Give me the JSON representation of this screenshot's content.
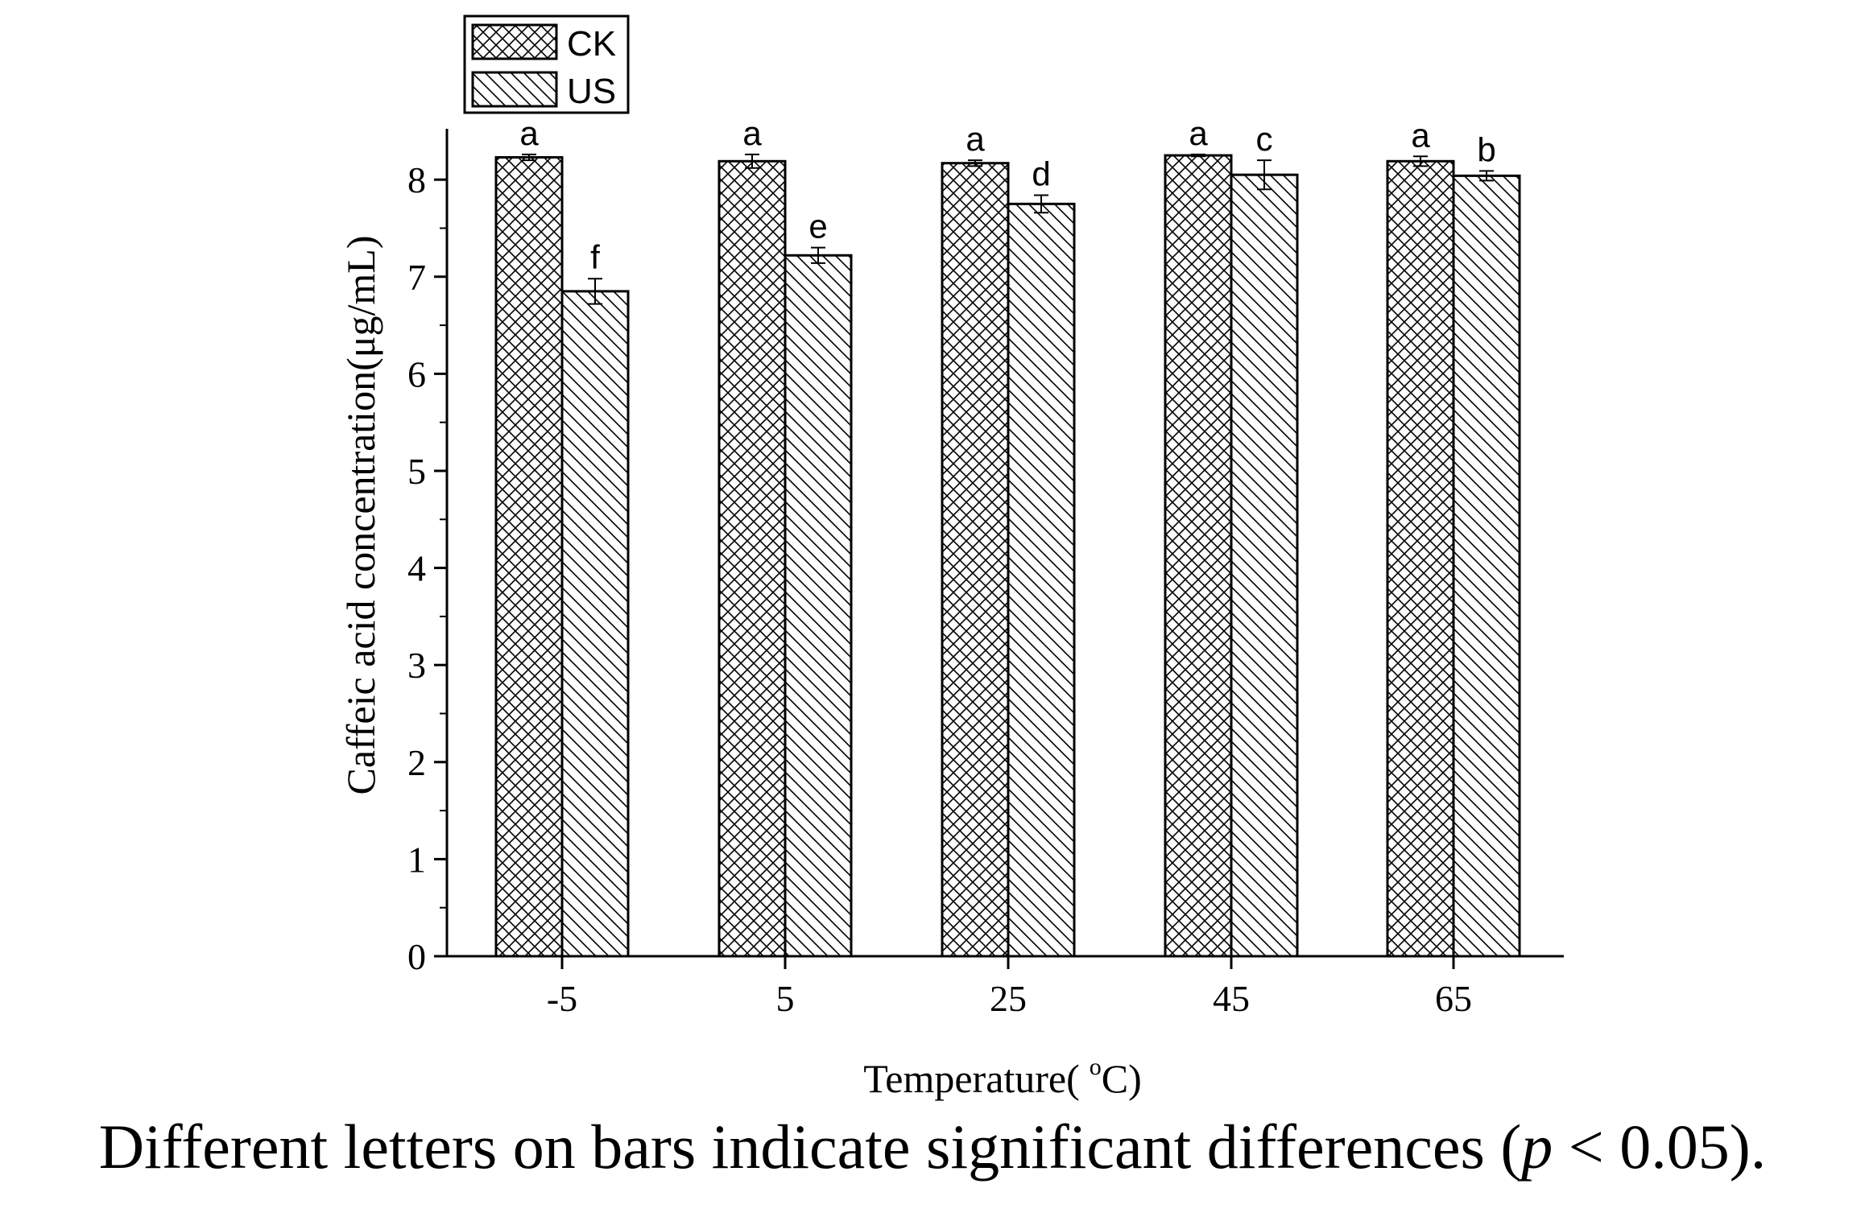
{
  "chart_data": {
    "type": "bar",
    "title": "",
    "xlabel_prefix": "Temperature(",
    "xlabel_degree": "o",
    "xlabel_suffix": "C)",
    "ylabel": "Caffeic acid concentration(μg/mL)",
    "categories": [
      "-5",
      "5",
      "25",
      "45",
      "65"
    ],
    "ylim": [
      0,
      8.5
    ],
    "yticks": [
      "0",
      "1",
      "2",
      "3",
      "4",
      "5",
      "6",
      "7",
      "8"
    ],
    "series": [
      {
        "name": "CK",
        "pattern": "crosshatch",
        "values": [
          8.23,
          8.19,
          8.17,
          8.25,
          8.19
        ],
        "errors": [
          0.03,
          0.07,
          0.03,
          0.01,
          0.05
        ],
        "labels": [
          "a",
          "a",
          "a",
          "a",
          "a"
        ]
      },
      {
        "name": "US",
        "pattern": "diagonal",
        "values": [
          6.85,
          7.22,
          7.75,
          8.05,
          8.04
        ],
        "errors": [
          0.13,
          0.08,
          0.09,
          0.15,
          0.05
        ],
        "labels": [
          "f",
          "e",
          "d",
          "c",
          "b"
        ]
      }
    ],
    "legend_position": "top-left"
  },
  "caption": {
    "before": "Different letters on bars indicate significant differences (",
    "p": "p",
    "after": " < 0.05)."
  },
  "colors": {
    "stroke": "#000000",
    "background": "#ffffff"
  }
}
